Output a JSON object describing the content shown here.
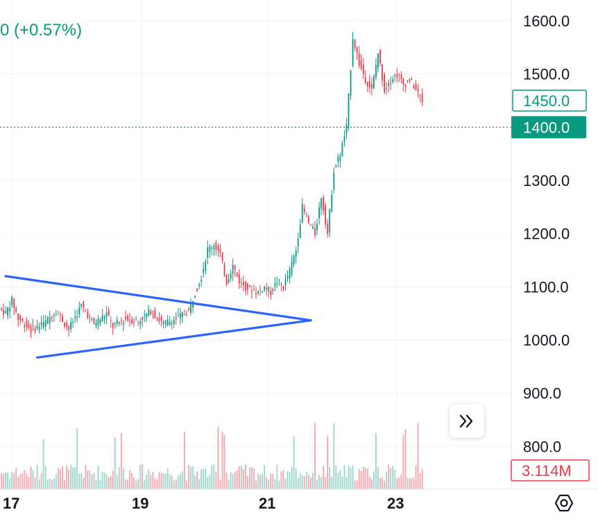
{
  "header": {
    "change_text": "0 (+0.57%)"
  },
  "price_scale": {
    "ticks": [
      "1600.0",
      "1500.0",
      "1400.0",
      "1300.0",
      "1200.0",
      "1100.0",
      "1000.0",
      "900.0",
      "800.0"
    ]
  },
  "time_scale": {
    "ticks": [
      "17",
      "19",
      "21",
      "23"
    ]
  },
  "badges": {
    "current_price": "1450.0",
    "crosshair_price": "1400.0",
    "volume": "3.114M"
  },
  "colors": {
    "up": "#089981",
    "down": "#f23645",
    "trendline": "#2962ff",
    "crosshair": "#089981",
    "volume_up": "#9ad6cc",
    "volume_down": "#f5a6ad",
    "grid": "#f0f3fa"
  },
  "icons": {
    "scroll": "double-chevron-right-icon",
    "settings": "gear-icon"
  },
  "chart_data": {
    "type": "candlestick",
    "ylim": [
      750,
      1625
    ],
    "x_ticks": [
      "17",
      "19",
      "21",
      "23"
    ],
    "hline": 1400.0,
    "last_price": 1450.0,
    "last_volume": "3.114M",
    "price_path": [
      {
        "x": 0,
        "y": 1060
      },
      {
        "x": 1,
        "y": 1050
      },
      {
        "x": 2,
        "y": 1075
      },
      {
        "x": 3,
        "y": 1040
      },
      {
        "x": 5,
        "y": 1020
      },
      {
        "x": 7,
        "y": 1030
      },
      {
        "x": 9,
        "y": 1055
      },
      {
        "x": 11,
        "y": 1020
      },
      {
        "x": 13,
        "y": 1065
      },
      {
        "x": 15,
        "y": 1030
      },
      {
        "x": 17,
        "y": 1050
      },
      {
        "x": 18,
        "y": 1025
      },
      {
        "x": 20,
        "y": 1040
      },
      {
        "x": 22,
        "y": 1035
      },
      {
        "x": 24,
        "y": 1055
      },
      {
        "x": 26,
        "y": 1030
      },
      {
        "x": 28,
        "y": 1040
      },
      {
        "x": 30,
        "y": 1055
      },
      {
        "x": 31,
        "y": 1090
      },
      {
        "x": 32,
        "y": 1120
      },
      {
        "x": 33,
        "y": 1170
      },
      {
        "x": 34,
        "y": 1180
      },
      {
        "x": 35,
        "y": 1160
      },
      {
        "x": 36,
        "y": 1110
      },
      {
        "x": 37,
        "y": 1140
      },
      {
        "x": 38,
        "y": 1110
      },
      {
        "x": 39,
        "y": 1100
      },
      {
        "x": 40,
        "y": 1095
      },
      {
        "x": 41,
        "y": 1090
      },
      {
        "x": 42,
        "y": 1100
      },
      {
        "x": 43,
        "y": 1090
      },
      {
        "x": 44,
        "y": 1110
      },
      {
        "x": 45,
        "y": 1100
      },
      {
        "x": 46,
        "y": 1130
      },
      {
        "x": 47,
        "y": 1170
      },
      {
        "x": 48,
        "y": 1250
      },
      {
        "x": 49,
        "y": 1220
      },
      {
        "x": 50,
        "y": 1200
      },
      {
        "x": 51,
        "y": 1270
      },
      {
        "x": 52,
        "y": 1200
      },
      {
        "x": 53,
        "y": 1320
      },
      {
        "x": 54,
        "y": 1350
      },
      {
        "x": 55,
        "y": 1400
      },
      {
        "x": 56,
        "y": 1570
      },
      {
        "x": 57,
        "y": 1520
      },
      {
        "x": 58,
        "y": 1490
      },
      {
        "x": 59,
        "y": 1470
      },
      {
        "x": 60,
        "y": 1540
      },
      {
        "x": 61,
        "y": 1470
      },
      {
        "x": 62,
        "y": 1490
      },
      {
        "x": 63,
        "y": 1500
      },
      {
        "x": 64,
        "y": 1480
      },
      {
        "x": 65,
        "y": 1490
      },
      {
        "x": 66,
        "y": 1470
      },
      {
        "x": 67,
        "y": 1450
      }
    ],
    "trendlines": [
      {
        "name": "upper",
        "points": [
          {
            "x": 0,
            "y": 1120
          },
          {
            "x": 40,
            "y": 1037
          }
        ]
      },
      {
        "name": "lower",
        "points": [
          {
            "x": 5,
            "y": 967
          },
          {
            "x": 40,
            "y": 1037
          }
        ]
      }
    ]
  }
}
